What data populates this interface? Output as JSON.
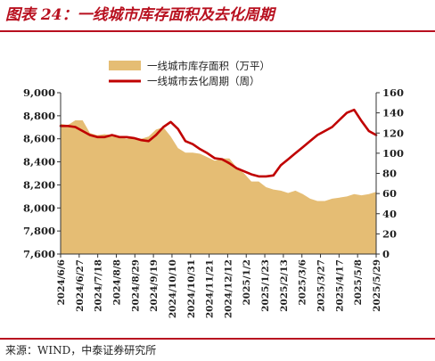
{
  "title": "图表 24：一线城市库存面积及去化周期",
  "source": "来源：WIND，中泰证券研究所",
  "colors": {
    "area": "#e5bd74",
    "line": "#c00000",
    "accent": "#b8101f"
  },
  "chart_data": {
    "type": "area+line",
    "legend": [
      {
        "name": "一线城市库存面积（万平）",
        "kind": "area"
      },
      {
        "name": "一线城市去化周期（周）",
        "kind": "line"
      }
    ],
    "x_ticks": [
      "2024/6/6",
      "2024/6/27",
      "2024/7/18",
      "2024/8/8",
      "2024/8/29",
      "2024/9/19",
      "2024/10/10",
      "2024/10/31",
      "2024/11/21",
      "2024/12/12",
      "2025/1/2",
      "2025/1/23",
      "2025/2/13",
      "2025/3/6",
      "2025/3/27",
      "2025/4/17",
      "2025/5/8",
      "2025/5/29"
    ],
    "y_left": {
      "min": 7600,
      "max": 9000,
      "ticks": [
        "7,600",
        "7,800",
        "8,000",
        "8,200",
        "8,400",
        "8,600",
        "8,800",
        "9,000"
      ]
    },
    "y_right": {
      "min": 0,
      "max": 160,
      "ticks": [
        "0",
        "20",
        "40",
        "60",
        "80",
        "100",
        "120",
        "140",
        "160"
      ]
    },
    "series": [
      {
        "name": "一线城市库存面积（万平）",
        "axis": "left",
        "values": [
          8730,
          8720,
          8760,
          8760,
          8650,
          8630,
          8640,
          8630,
          8620,
          8600,
          8610,
          8600,
          8620,
          8680,
          8700,
          8620,
          8520,
          8480,
          8480,
          8470,
          8440,
          8410,
          8430,
          8430,
          8350,
          8300,
          8230,
          8230,
          8180,
          8160,
          8150,
          8130,
          8150,
          8120,
          8080,
          8060,
          8060,
          8080,
          8090,
          8100,
          8120,
          8110,
          8120,
          8140
        ]
      },
      {
        "name": "一线城市去化周期（周）",
        "axis": "right",
        "values": [
          127,
          127,
          126,
          122,
          118,
          116,
          116,
          118,
          116,
          116,
          115,
          113,
          112,
          118,
          126,
          131,
          124,
          112,
          109,
          104,
          100,
          95,
          94,
          90,
          85,
          82,
          79,
          77,
          77,
          78,
          88,
          94,
          100,
          106,
          112,
          118,
          122,
          126,
          133,
          140,
          143,
          132,
          122,
          118
        ]
      }
    ]
  }
}
